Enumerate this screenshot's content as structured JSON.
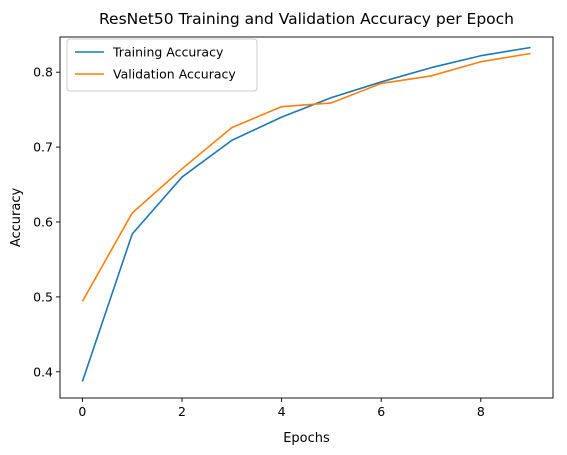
{
  "chart_data": {
    "type": "line",
    "title": "ResNet50 Training and Validation Accuracy per Epoch",
    "xlabel": "Epochs",
    "ylabel": "Accuracy",
    "x": [
      0,
      1,
      2,
      3,
      4,
      5,
      6,
      7,
      8,
      9
    ],
    "xlim": [
      -0.45,
      9.45
    ],
    "ylim": [
      0.365,
      0.847
    ],
    "xticks": [
      0,
      2,
      4,
      6,
      8
    ],
    "xtick_labels": [
      "0",
      "2",
      "4",
      "6",
      "8"
    ],
    "yticks": [
      0.4,
      0.5,
      0.6,
      0.7,
      0.8
    ],
    "ytick_labels": [
      "0.4",
      "0.5",
      "0.6",
      "0.7",
      "0.8"
    ],
    "grid": false,
    "legend_position": "top-left",
    "series": [
      {
        "name": "Training Accuracy",
        "color": "#1f77b4",
        "values": [
          0.387,
          0.584,
          0.66,
          0.709,
          0.74,
          0.766,
          0.787,
          0.806,
          0.822,
          0.833
        ]
      },
      {
        "name": "Validation Accuracy",
        "color": "#ff7f0e",
        "values": [
          0.494,
          0.612,
          0.671,
          0.726,
          0.754,
          0.759,
          0.785,
          0.795,
          0.814,
          0.825
        ]
      }
    ]
  }
}
